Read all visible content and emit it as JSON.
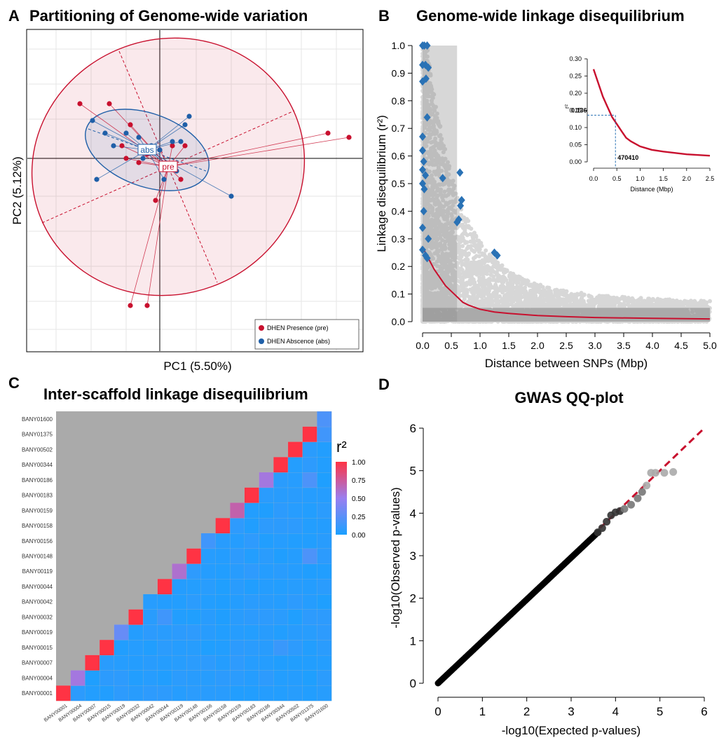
{
  "chart_data": [
    {
      "panel": "A",
      "type": "scatter",
      "title": "Partitioning of Genome-wide variation",
      "xlabel": "PC1 (5.50%)",
      "ylabel": "PC2 (5.12%)",
      "grid": true,
      "legend_position": "bottom-right",
      "centroid_labels": {
        "abs": "abs",
        "pre": "pre"
      },
      "series": [
        {
          "name": "DHEN Presence (pre)",
          "color": "#c8102e",
          "centroid": [
            0.2,
            -0.2
          ],
          "points": [
            [
              -1.9,
              1.3
            ],
            [
              -1.2,
              1.3
            ],
            [
              -0.7,
              0.8
            ],
            [
              -0.9,
              0.3
            ],
            [
              -0.8,
              0.0
            ],
            [
              -0.5,
              -0.1
            ],
            [
              -0.3,
              0.1
            ],
            [
              0.3,
              0.3
            ],
            [
              0.6,
              0.3
            ],
            [
              0.5,
              -0.5
            ],
            [
              -0.1,
              -1.0
            ],
            [
              4.0,
              0.6
            ],
            [
              4.5,
              0.5
            ],
            [
              -0.7,
              -3.5
            ],
            [
              -0.3,
              -3.5
            ],
            [
              0.0,
              0.2
            ]
          ]
        },
        {
          "name": "DHEN Abscence (abs)",
          "color": "#1f5fa8",
          "centroid": [
            -0.3,
            0.2
          ],
          "points": [
            [
              -1.6,
              0.9
            ],
            [
              -1.3,
              0.6
            ],
            [
              -1.1,
              0.3
            ],
            [
              -0.8,
              0.6
            ],
            [
              -0.5,
              0.5
            ],
            [
              -0.4,
              0.0
            ],
            [
              -0.2,
              0.3
            ],
            [
              0.0,
              0.2
            ],
            [
              0.3,
              0.4
            ],
            [
              0.5,
              0.4
            ],
            [
              0.6,
              0.8
            ],
            [
              0.7,
              1.0
            ],
            [
              0.4,
              -0.3
            ],
            [
              0.1,
              -0.5
            ],
            [
              -1.5,
              -0.5
            ],
            [
              1.7,
              -0.9
            ]
          ]
        }
      ]
    },
    {
      "panel": "B",
      "type": "scatter",
      "title": "Genome-wide linkage disequilibrium",
      "xlabel": "Distance between SNPs (Mbp)",
      "ylabel": "Linkage disequilibrium (r²)",
      "xlim": [
        0,
        5
      ],
      "ylim": [
        0,
        1
      ],
      "xticks": [
        "0.0",
        "0.5",
        "1.0",
        "1.5",
        "2.0",
        "2.5",
        "3.0",
        "3.5",
        "4.0",
        "4.5",
        "5.0"
      ],
      "yticks": [
        "0.0",
        "0.1",
        "0.2",
        "0.3",
        "0.4",
        "0.5",
        "0.6",
        "0.7",
        "0.8",
        "0.9",
        "1.0"
      ],
      "fit_curve": [
        [
          0.0,
          0.27
        ],
        [
          0.1,
          0.23
        ],
        [
          0.2,
          0.19
        ],
        [
          0.3,
          0.16
        ],
        [
          0.4,
          0.13
        ],
        [
          0.5,
          0.11
        ],
        [
          0.6,
          0.09
        ],
        [
          0.7,
          0.07
        ],
        [
          0.8,
          0.06
        ],
        [
          1.0,
          0.045
        ],
        [
          1.25,
          0.035
        ],
        [
          1.5,
          0.03
        ],
        [
          2.0,
          0.022
        ],
        [
          2.5,
          0.018
        ],
        [
          3.0,
          0.015
        ],
        [
          4.0,
          0.012
        ],
        [
          5.0,
          0.01
        ]
      ],
      "highlighted_points": [
        [
          0.0,
          1.0
        ],
        [
          0.03,
          1.0
        ],
        [
          0.08,
          1.0
        ],
        [
          0.0,
          0.93
        ],
        [
          0.05,
          0.93
        ],
        [
          0.1,
          0.92
        ],
        [
          0.0,
          0.87
        ],
        [
          0.06,
          0.88
        ],
        [
          0.08,
          0.74
        ],
        [
          0.0,
          0.67
        ],
        [
          0.0,
          0.62
        ],
        [
          0.02,
          0.58
        ],
        [
          0.0,
          0.55
        ],
        [
          0.05,
          0.53
        ],
        [
          0.0,
          0.5
        ],
        [
          0.03,
          0.48
        ],
        [
          0.35,
          0.52
        ],
        [
          0.65,
          0.54
        ],
        [
          0.68,
          0.44
        ],
        [
          0.66,
          0.42
        ],
        [
          0.6,
          0.36
        ],
        [
          0.63,
          0.37
        ],
        [
          0.1,
          0.3
        ],
        [
          0.0,
          0.26
        ],
        [
          0.05,
          0.24
        ],
        [
          0.08,
          0.23
        ],
        [
          1.25,
          0.25
        ],
        [
          1.3,
          0.24
        ],
        [
          0.02,
          0.4
        ],
        [
          0.0,
          0.34
        ]
      ],
      "inset": {
        "xlabel": "Distance (Mbp)",
        "ylabel": "r²",
        "xlim": [
          0,
          2.5
        ],
        "ylim": [
          0,
          0.3
        ],
        "xticks": [
          "0.0",
          "0.5",
          "1.0",
          "1.5",
          "2.0",
          "2.5"
        ],
        "yticks": [
          "0.00",
          "0.05",
          "0.10",
          "0.15",
          "0.20",
          "0.25",
          "0.30"
        ],
        "annotation_y": "0.136",
        "annotation_x": "470410"
      }
    },
    {
      "panel": "C",
      "type": "heatmap",
      "title": "Inter-scaffold linkage disequilibrium",
      "legend_title": "r²",
      "legend_ticks": [
        "1.00",
        "0.75",
        "0.50",
        "0.25",
        "0.00"
      ],
      "scaffolds": [
        "BANY00001",
        "BANY00004",
        "BANY00007",
        "BANY00015",
        "BANY00019",
        "BANY00032",
        "BANY00042",
        "BANY00044",
        "BANY00119",
        "BANY00148",
        "BANY00156",
        "BANY00158",
        "BANY00159",
        "BANY00183",
        "BANY00186",
        "BANY00344",
        "BANY00502",
        "BANY01375",
        "BANY01600"
      ],
      "x_tick_labels": [
        "BANY00001",
        "BANY00004",
        "BANY00007",
        "BANY00015",
        "BANY00019",
        "BANY00032",
        "BANY00042",
        "BANY00044",
        "BANY00119",
        "BANY00148",
        "BANY00156",
        "BANY00158",
        "BANY00159",
        "BANY00183",
        "BANY00186",
        "BANY00344",
        "BANY00502",
        "BANY01375",
        "BANY01600"
      ],
      "diagonal": [
        1.0,
        0.55,
        1.0,
        1.0,
        0.3,
        1.0,
        0.05,
        1.0,
        0.6,
        1.0,
        0.15,
        1.0,
        0.7,
        1.0,
        0.55,
        1.0,
        1.0,
        1.0,
        0.2
      ],
      "notable_offdiag": [
        {
          "row": 9,
          "col": 8,
          "value": 0.15
        },
        {
          "row": 14,
          "col": 14,
          "value": 0.55
        },
        {
          "row": 9,
          "col": 17,
          "value": 0.2
        },
        {
          "row": 14,
          "col": 17,
          "value": 0.2
        },
        {
          "row": 5,
          "col": 7,
          "value": 0.15
        },
        {
          "row": 3,
          "col": 15,
          "value": 0.12
        },
        {
          "row": 17,
          "col": 18,
          "value": 0.15
        }
      ]
    },
    {
      "panel": "D",
      "type": "scatter",
      "title": "GWAS QQ-plot",
      "xlabel": "-log10(Expected p-values)",
      "ylabel": "-log10(Observed p-values)",
      "xlim": [
        0,
        6
      ],
      "ylim": [
        0,
        6
      ],
      "xticks": [
        "0",
        "1",
        "2",
        "3",
        "4",
        "5",
        "6"
      ],
      "yticks": [
        "0",
        "1",
        "2",
        "3",
        "4",
        "5",
        "6"
      ],
      "reference_line": [
        [
          0,
          0
        ],
        [
          6,
          6
        ]
      ],
      "points_tail": [
        [
          3.6,
          3.55
        ],
        [
          3.7,
          3.65
        ],
        [
          3.8,
          3.8
        ],
        [
          3.9,
          3.95
        ],
        [
          4.0,
          4.02
        ],
        [
          4.1,
          4.05
        ],
        [
          4.2,
          4.1
        ],
        [
          4.35,
          4.2
        ],
        [
          4.5,
          4.35
        ],
        [
          4.6,
          4.5
        ],
        [
          4.7,
          4.65
        ],
        [
          4.8,
          4.95
        ],
        [
          4.9,
          4.95
        ],
        [
          5.1,
          4.95
        ],
        [
          5.3,
          4.97
        ]
      ]
    }
  ]
}
